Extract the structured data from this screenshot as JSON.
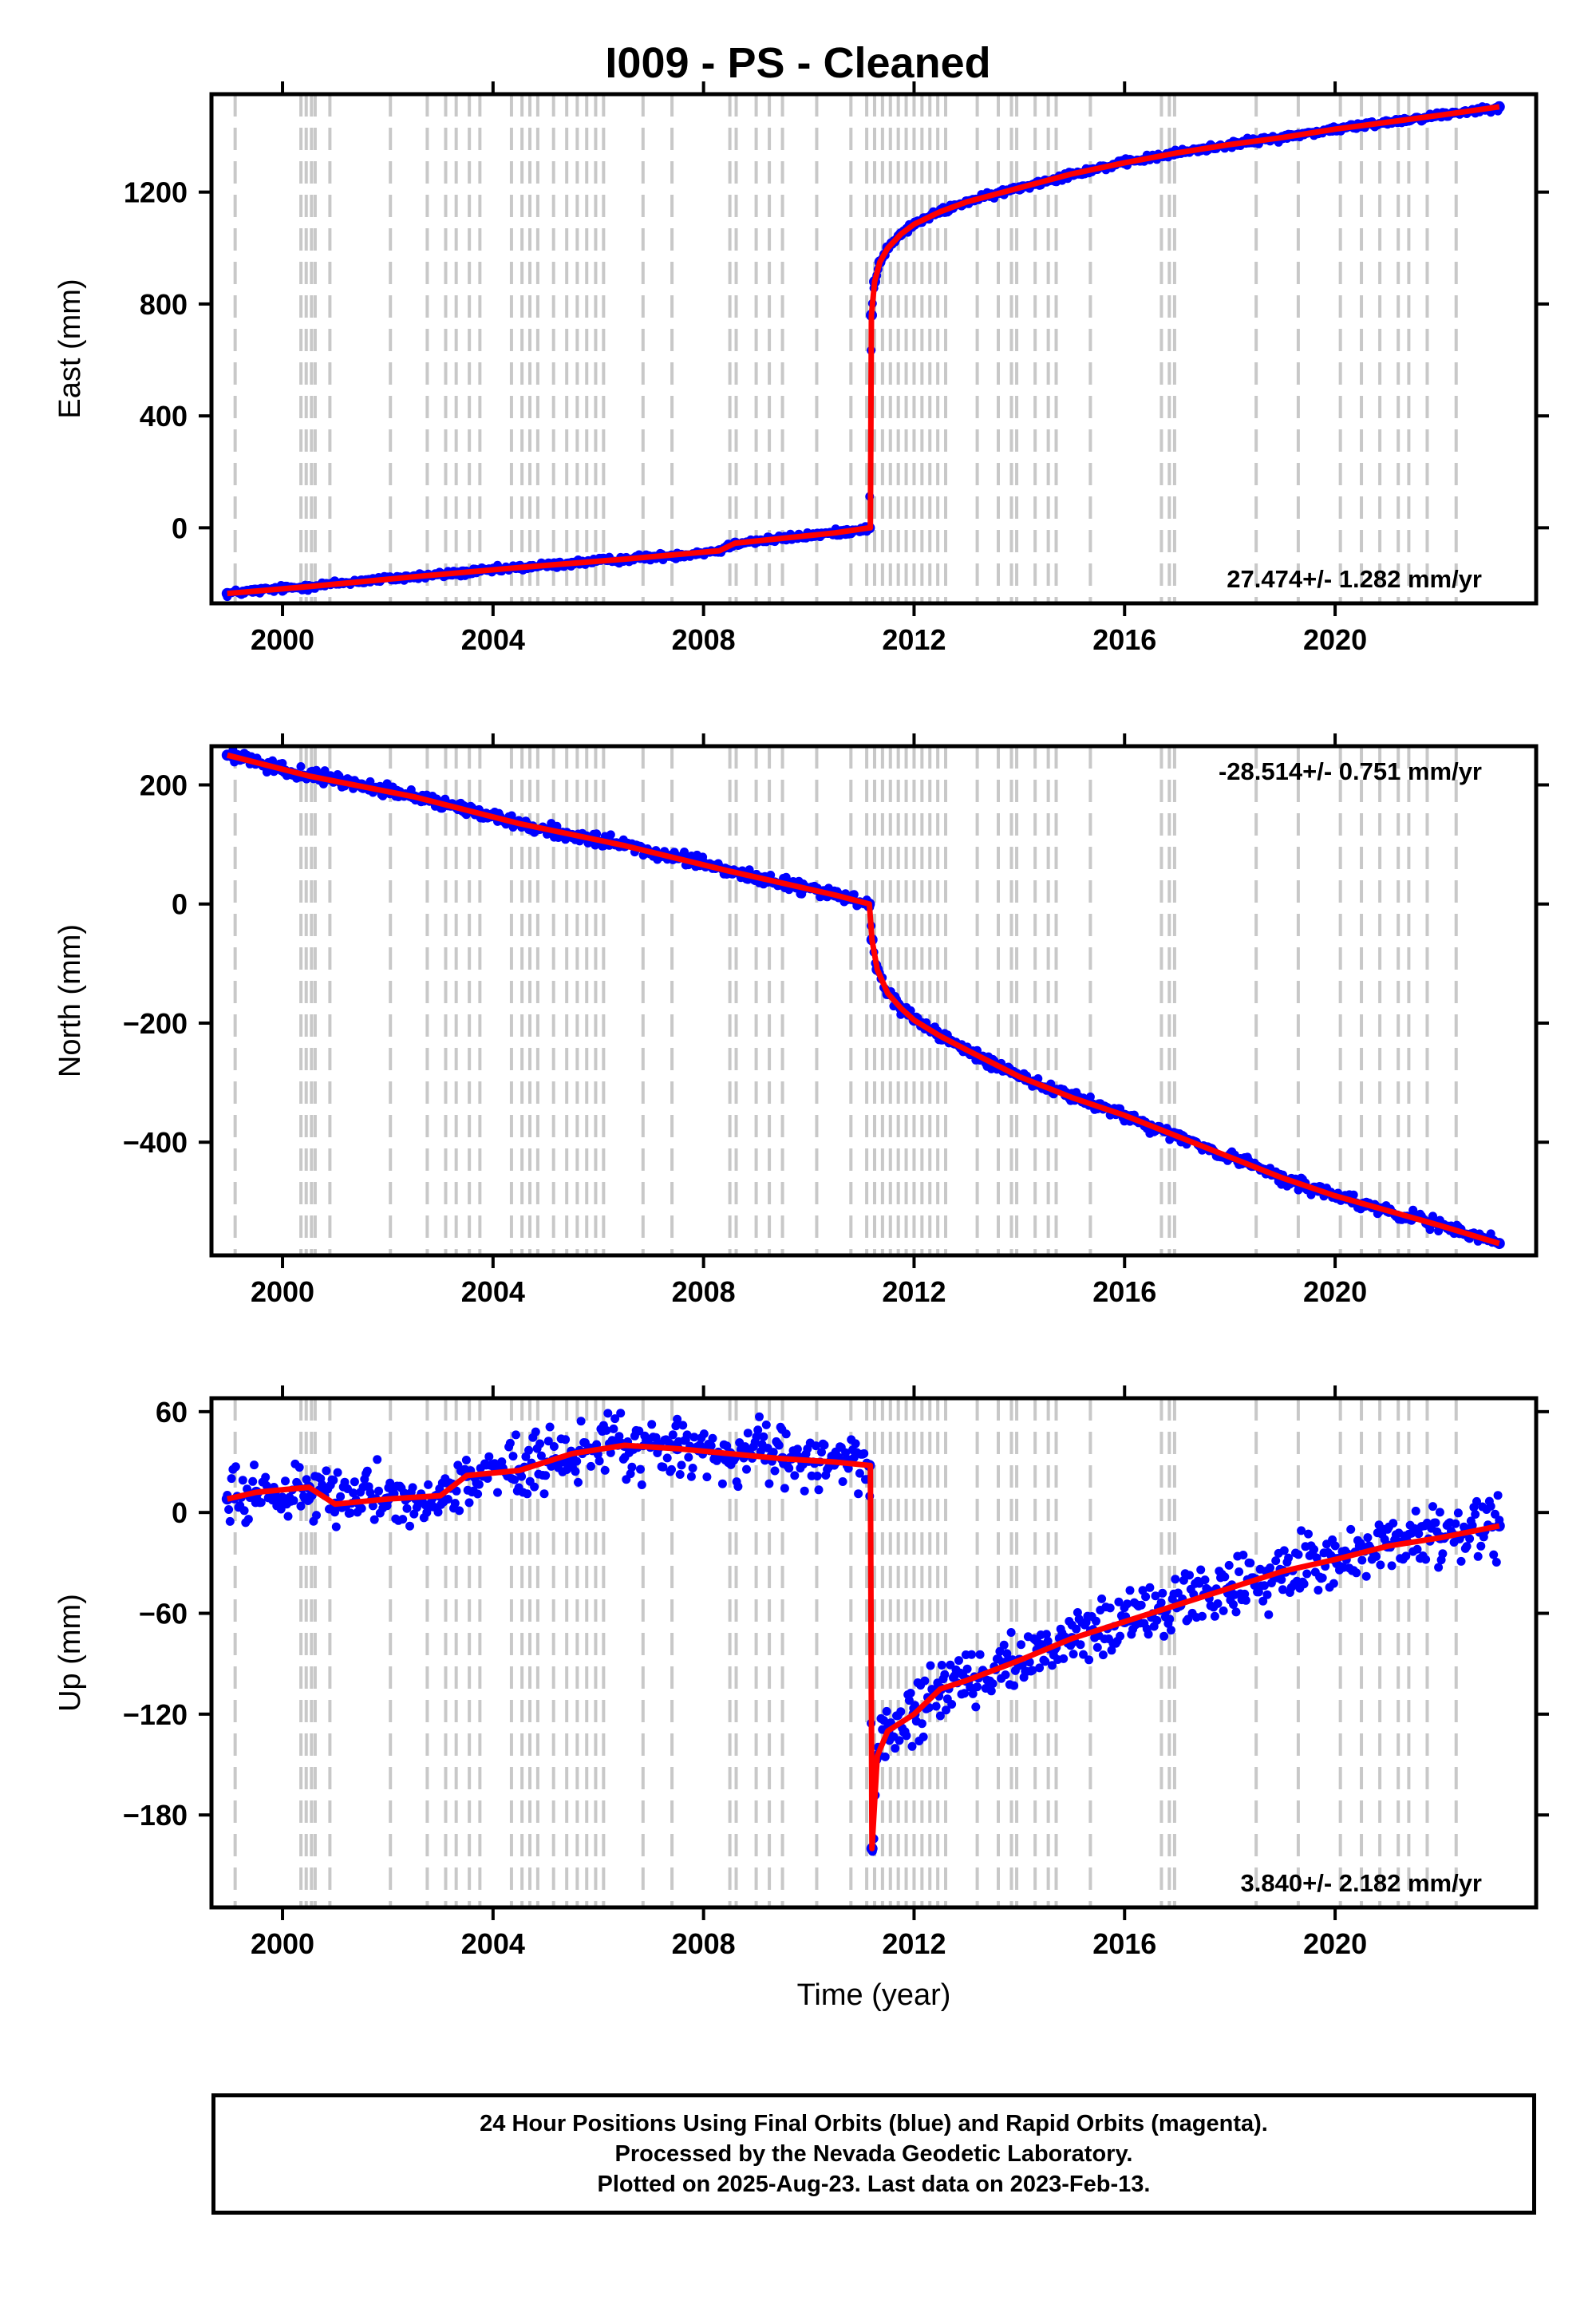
{
  "title": "I009  - PS - Cleaned",
  "colors": {
    "points": "#0000ff",
    "model": "#ff0000",
    "events": "#c8c8c8",
    "axes": "#000000"
  },
  "footer": {
    "line1": "24 Hour Positions Using Final Orbits (blue) and Rapid Orbits (magenta).",
    "line2": "Processed by the Nevada Geodetic Laboratory.",
    "line3": "Plotted on 2025-Aug-23. Last data on 2023-Feb-13."
  },
  "chart_data": [
    {
      "type": "scatter",
      "ylabel": "East (mm)",
      "xlabel": "",
      "rate_label": "27.474+/- 1.282 mm/yr",
      "rate_position": "bottom-right",
      "xlim": [
        1998.65,
        2023.82
      ],
      "ylim": [
        -270,
        1550
      ],
      "x_ticks": [
        2000,
        2004,
        2008,
        2012,
        2016,
        2020
      ],
      "x_tick_labels": [
        "2000",
        "2004",
        "2008",
        "2012",
        "2016",
        "2020"
      ],
      "y_ticks": [
        0,
        400,
        800,
        1200
      ],
      "y_tick_labels": [
        "0",
        "400",
        "800",
        "1200"
      ],
      "series": [
        {
          "x": [
            1998.95,
            1999.5,
            2000.5,
            2001.5,
            2002.5,
            2003.5,
            2004.5,
            2005.5,
            2006.5,
            2007.5,
            2008.3,
            2008.6,
            2009.5,
            2010.5,
            2011.15,
            2011.19,
            2011.25,
            2011.35,
            2011.5,
            2011.75,
            2012.0,
            2012.5,
            2013.0,
            2014.0,
            2015.0,
            2016.0,
            2017.0,
            2018.0,
            2019.0,
            2020.0,
            2021.0,
            2022.0,
            2023.12
          ],
          "y": [
            -235,
            -225,
            -210,
            -190,
            -175,
            -160,
            -142,
            -127,
            -112,
            -98,
            -82,
            -55,
            -38,
            -18,
            0,
            760,
            880,
            950,
            1000,
            1050,
            1085,
            1130,
            1165,
            1215,
            1265,
            1305,
            1340,
            1370,
            1395,
            1425,
            1450,
            1475,
            1505
          ]
        }
      ],
      "model": {
        "x": [
          1998.95,
          2000.5,
          2002.5,
          2004.5,
          2006.5,
          2008.3,
          2008.6,
          2010.5,
          2011.15,
          2011.17,
          2011.19,
          2011.25,
          2011.35,
          2011.5,
          2011.75,
          2012.0,
          2012.5,
          2013.0,
          2014.0,
          2015.0,
          2016.0,
          2017.0,
          2018.0,
          2019.0,
          2020.0,
          2021.0,
          2022.0,
          2023.12
        ],
        "y": [
          -235,
          -210,
          -175,
          -142,
          -112,
          -82,
          -55,
          -18,
          0,
          0,
          760,
          880,
          950,
          1000,
          1050,
          1085,
          1130,
          1165,
          1215,
          1265,
          1305,
          1340,
          1370,
          1395,
          1425,
          1450,
          1475,
          1505
        ]
      }
    },
    {
      "type": "scatter",
      "ylabel": "North (mm)",
      "xlabel": "",
      "rate_label": "-28.514+/- 0.751 mm/yr",
      "rate_position": "top-right",
      "xlim": [
        1998.65,
        2023.82
      ],
      "ylim": [
        -590,
        265
      ],
      "x_ticks": [
        2000,
        2004,
        2008,
        2012,
        2016,
        2020
      ],
      "x_tick_labels": [
        "2000",
        "2004",
        "2008",
        "2012",
        "2016",
        "2020"
      ],
      "y_ticks": [
        -400,
        -200,
        0,
        200
      ],
      "y_tick_labels": [
        "−400",
        "−200",
        "0",
        "200"
      ],
      "series": [
        {
          "x": [
            1998.95,
            1999.5,
            2000.5,
            2001.5,
            2002.5,
            2003.5,
            2004.5,
            2005.5,
            2006.5,
            2007.5,
            2008.5,
            2009.5,
            2010.5,
            2011.15,
            2011.2,
            2011.3,
            2011.5,
            2011.75,
            2012.0,
            2012.5,
            2013.0,
            2014.0,
            2015.0,
            2016.0,
            2017.0,
            2018.0,
            2019.0,
            2020.0,
            2021.0,
            2022.0,
            2023.12
          ],
          "y": [
            250,
            238,
            215,
            200,
            180,
            160,
            135,
            115,
            98,
            78,
            55,
            35,
            15,
            0,
            -60,
            -110,
            -150,
            -175,
            -195,
            -222,
            -245,
            -290,
            -325,
            -355,
            -390,
            -425,
            -460,
            -490,
            -515,
            -540,
            -570
          ]
        }
      ],
      "model": {
        "x": [
          1998.95,
          2000.5,
          2002.5,
          2004.5,
          2006.5,
          2008.5,
          2010.5,
          2011.15,
          2011.2,
          2011.3,
          2011.5,
          2011.75,
          2012.0,
          2012.5,
          2013.0,
          2014.0,
          2015.0,
          2016.0,
          2017.0,
          2018.0,
          2019.0,
          2020.0,
          2021.0,
          2022.0,
          2023.12
        ],
        "y": [
          250,
          215,
          180,
          135,
          98,
          55,
          15,
          0,
          -60,
          -110,
          -150,
          -175,
          -195,
          -222,
          -245,
          -290,
          -325,
          -355,
          -390,
          -425,
          -460,
          -490,
          -515,
          -540,
          -570
        ]
      }
    },
    {
      "type": "scatter",
      "ylabel": "Up (mm)",
      "xlabel": "Time (year)",
      "rate_label": "3.840+/- 2.182 mm/yr",
      "rate_position": "bottom-right",
      "xlim": [
        1998.65,
        2023.82
      ],
      "ylim": [
        -235,
        68
      ],
      "x_ticks": [
        2000,
        2004,
        2008,
        2012,
        2016,
        2020
      ],
      "x_tick_labels": [
        "2000",
        "2004",
        "2008",
        "2012",
        "2016",
        "2020"
      ],
      "y_ticks": [
        -180,
        -120,
        -60,
        0,
        60
      ],
      "y_tick_labels": [
        "−180",
        "−120",
        "−60",
        "0",
        "60"
      ],
      "series": [
        {
          "x": [
            1998.95,
            1999.5,
            2000.5,
            2001.0,
            2002.0,
            2003.0,
            2003.5,
            2004.5,
            2005.5,
            2006.5,
            2007.5,
            2008.5,
            2009.5,
            2010.5,
            2011.15,
            2011.2,
            2011.3,
            2011.5,
            2012.0,
            2012.5,
            2013.0,
            2014.0,
            2015.0,
            2016.0,
            2017.0,
            2018.0,
            2019.0,
            2020.0,
            2021.0,
            2022.0,
            2023.12
          ],
          "y": [
            8,
            12,
            15,
            5,
            8,
            10,
            22,
            25,
            35,
            40,
            38,
            35,
            32,
            30,
            28,
            -200,
            -145,
            -130,
            -120,
            -105,
            -100,
            -88,
            -75,
            -65,
            -55,
            -45,
            -35,
            -28,
            -20,
            -15,
            -8
          ]
        }
      ],
      "model": {
        "x": [
          1998.95,
          1999.5,
          2000.5,
          2001.0,
          2002.0,
          2003.0,
          2003.5,
          2004.5,
          2005.5,
          2006.5,
          2007.5,
          2008.5,
          2009.5,
          2010.5,
          2011.15,
          2011.17,
          2011.2,
          2011.3,
          2011.5,
          2012.0,
          2012.5,
          2013.0,
          2014.0,
          2015.0,
          2016.0,
          2017.0,
          2018.0,
          2019.0,
          2020.0,
          2021.0,
          2022.0,
          2023.12
        ],
        "y": [
          8,
          12,
          15,
          5,
          8,
          10,
          22,
          25,
          35,
          40,
          38,
          35,
          32,
          30,
          28,
          28,
          -200,
          -145,
          -130,
          -120,
          -105,
          -100,
          -88,
          -75,
          -65,
          -55,
          -45,
          -35,
          -28,
          -20,
          -15,
          -8
        ]
      }
    }
  ],
  "event_lines_years": [
    1999.1,
    2000.35,
    2000.45,
    2000.55,
    2000.62,
    2000.9,
    2002.05,
    2002.75,
    2003.1,
    2003.3,
    2003.55,
    2003.75,
    2004.35,
    2004.55,
    2004.7,
    2004.85,
    2005.15,
    2005.4,
    2005.6,
    2005.78,
    2005.95,
    2006.1,
    2006.85,
    2007.4,
    2008.5,
    2008.62,
    2009.0,
    2009.25,
    2009.5,
    2010.15,
    2010.8,
    2011.1,
    2011.25,
    2011.4,
    2011.55,
    2011.7,
    2011.85,
    2012.0,
    2012.15,
    2012.3,
    2012.45,
    2012.6,
    2013.2,
    2013.6,
    2013.85,
    2013.95,
    2014.3,
    2014.55,
    2014.7,
    2015.35,
    2016.7,
    2016.85,
    2016.95,
    2018.5,
    2019.3,
    2020.1,
    2020.5,
    2020.85,
    2021.2,
    2021.4,
    2021.75,
    2022.3
  ]
}
